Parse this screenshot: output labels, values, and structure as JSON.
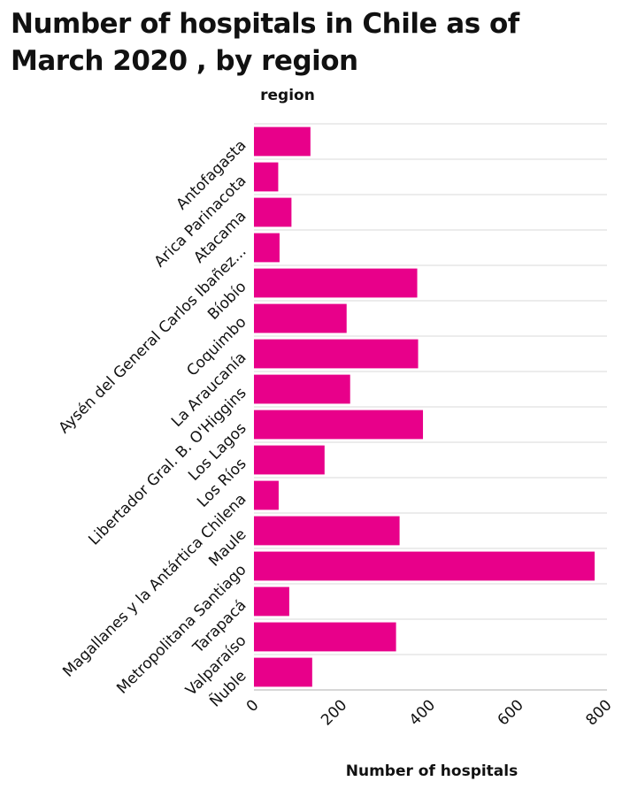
{
  "chart_data": {
    "type": "bar",
    "orientation": "horizontal",
    "title": "Number of hospitals in Chile as of March 2020 , by region",
    "ylabel": "region",
    "xlabel": "Number of hospitals",
    "categories": [
      "Antofagasta",
      "Arica Parinacota",
      "Atacama",
      "Aysén del General Carlos Ibañez...",
      "Bíobío",
      "Coquimbo",
      "La Araucanía",
      "Libertador Gral. B. O'Higgins",
      "Los Lagos",
      "Los Ríos",
      "Magallanes y la Antártica Chilena",
      "Maule",
      "Metropolitana Santiago",
      "Tarapacá",
      "Valparaíso",
      "Ñuble"
    ],
    "values": [
      128,
      55,
      85,
      58,
      370,
      210,
      372,
      218,
      383,
      160,
      56,
      330,
      772,
      80,
      322,
      132
    ],
    "xlim": [
      0,
      800
    ],
    "xticks": [
      0,
      200,
      400,
      600,
      800
    ],
    "grid": true,
    "bar_color": "#e8008a",
    "grid_color": "#d9d9d9"
  }
}
